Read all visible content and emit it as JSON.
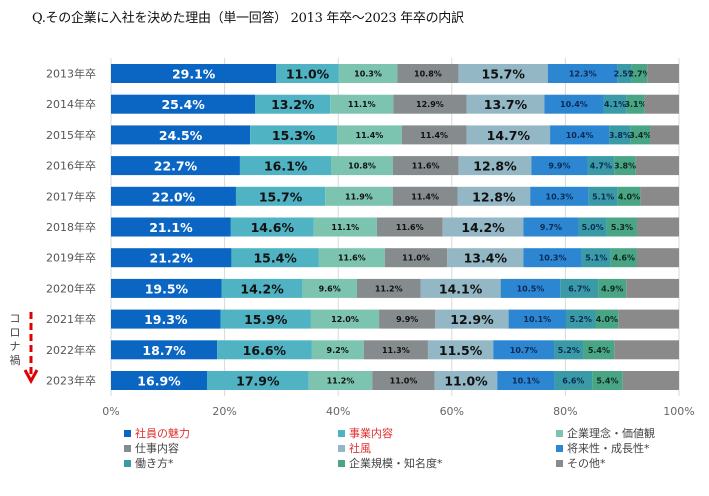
{
  "title": "Q.その企業に入社を決めた理由（単一回答） 2013 年卒～2023 年卒の内訳",
  "annotation": {
    "text": "コロナ禍",
    "chars": [
      "コ",
      "ロ",
      "ナ",
      "禍"
    ],
    "arrow_color": "#e00000"
  },
  "chart_data": {
    "type": "bar",
    "orientation": "horizontal",
    "stacked": "100%",
    "title": "Q.その企業に入社を決めた理由（単一回答） 2013 年卒～2023 年卒の内訳",
    "xlabel": "",
    "ylabel": "",
    "xlim": [
      0,
      100
    ],
    "xticks": [
      "0%",
      "20%",
      "40%",
      "60%",
      "80%",
      "100%"
    ],
    "grid": true,
    "legend_position": "bottom",
    "categories": [
      "2013年卒",
      "2014年卒",
      "2015年卒",
      "2016年卒",
      "2017年卒",
      "2018年卒",
      "2019年卒",
      "2020年卒",
      "2021年卒",
      "2022年卒",
      "2023年卒"
    ],
    "series": [
      {
        "name": "社員の魅力",
        "color": "#0a66c2",
        "label_color": "#ffffff",
        "highlight": true,
        "label_size": "large",
        "values": [
          29.1,
          25.4,
          24.5,
          22.7,
          22.0,
          21.1,
          21.2,
          19.5,
          19.3,
          18.7,
          16.9
        ]
      },
      {
        "name": "事業内容",
        "color": "#4fb3c4",
        "label_color": "#111111",
        "highlight": true,
        "label_size": "large",
        "values": [
          11.0,
          13.2,
          15.3,
          16.1,
          15.7,
          14.6,
          15.4,
          14.2,
          15.9,
          16.6,
          17.9
        ]
      },
      {
        "name": "企業理念・価値観",
        "color": "#7cc4b0",
        "label_color": "#111111",
        "highlight": false,
        "label_size": "small",
        "values": [
          10.3,
          11.1,
          11.4,
          10.8,
          11.9,
          11.1,
          11.6,
          9.6,
          12.0,
          9.2,
          11.2
        ]
      },
      {
        "name": "仕事内容",
        "color": "#868b8e",
        "label_color": "#111111",
        "highlight": false,
        "label_size": "small",
        "values": [
          10.8,
          12.9,
          11.4,
          11.6,
          11.4,
          11.6,
          11.0,
          11.2,
          9.9,
          11.3,
          11.0
        ]
      },
      {
        "name": "社風",
        "color": "#93b7c4",
        "label_color": "#111111",
        "highlight": true,
        "label_size": "large",
        "values": [
          15.7,
          13.7,
          14.7,
          12.8,
          12.8,
          14.2,
          13.4,
          14.1,
          12.9,
          11.5,
          11.0
        ]
      },
      {
        "name": "将来性・成長性*",
        "color": "#2d86d1",
        "label_color": "#0a2a55",
        "highlight": false,
        "label_size": "small",
        "values": [
          12.3,
          10.4,
          10.4,
          9.9,
          10.3,
          9.7,
          10.3,
          10.5,
          10.1,
          10.7,
          10.1
        ]
      },
      {
        "name": "働き方*",
        "color": "#3a9aa6",
        "label_color": "#0a2a55",
        "highlight": false,
        "label_size": "small",
        "values": [
          2.5,
          4.1,
          3.8,
          4.7,
          5.1,
          5.0,
          5.1,
          6.7,
          5.2,
          5.2,
          6.6
        ]
      },
      {
        "name": "企業規模・知名度*",
        "color": "#4aa585",
        "label_color": "#0a2a22",
        "highlight": false,
        "label_size": "small",
        "values": [
          2.7,
          3.1,
          3.4,
          3.8,
          4.0,
          5.3,
          4.6,
          4.9,
          4.0,
          5.4,
          5.4
        ]
      },
      {
        "name": "その他*",
        "color": "#8a8a8a",
        "label_color": "#111111",
        "highlight": false,
        "label_size": "none",
        "values": [
          5.6,
          6.1,
          5.1,
          7.6,
          6.8,
          7.4,
          7.4,
          9.3,
          10.7,
          11.4,
          9.9
        ]
      }
    ]
  },
  "legend": {
    "items": [
      {
        "label": "社員の魅力",
        "color": "#0a66c2",
        "highlight": true
      },
      {
        "label": "事業内容",
        "color": "#4fb3c4",
        "highlight": true
      },
      {
        "label": "企業理念・価値観",
        "color": "#7cc4b0",
        "highlight": false
      },
      {
        "label": "仕事内容",
        "color": "#868b8e",
        "highlight": false
      },
      {
        "label": "社風",
        "color": "#93b7c4",
        "highlight": true
      },
      {
        "label": "将来性・成長性*",
        "color": "#2d86d1",
        "highlight": false
      },
      {
        "label": "働き方*",
        "color": "#3a9aa6",
        "highlight": false
      },
      {
        "label": "企業規模・知名度*",
        "color": "#4aa585",
        "highlight": false
      },
      {
        "label": "その他*",
        "color": "#8a8a8a",
        "highlight": false
      }
    ]
  }
}
